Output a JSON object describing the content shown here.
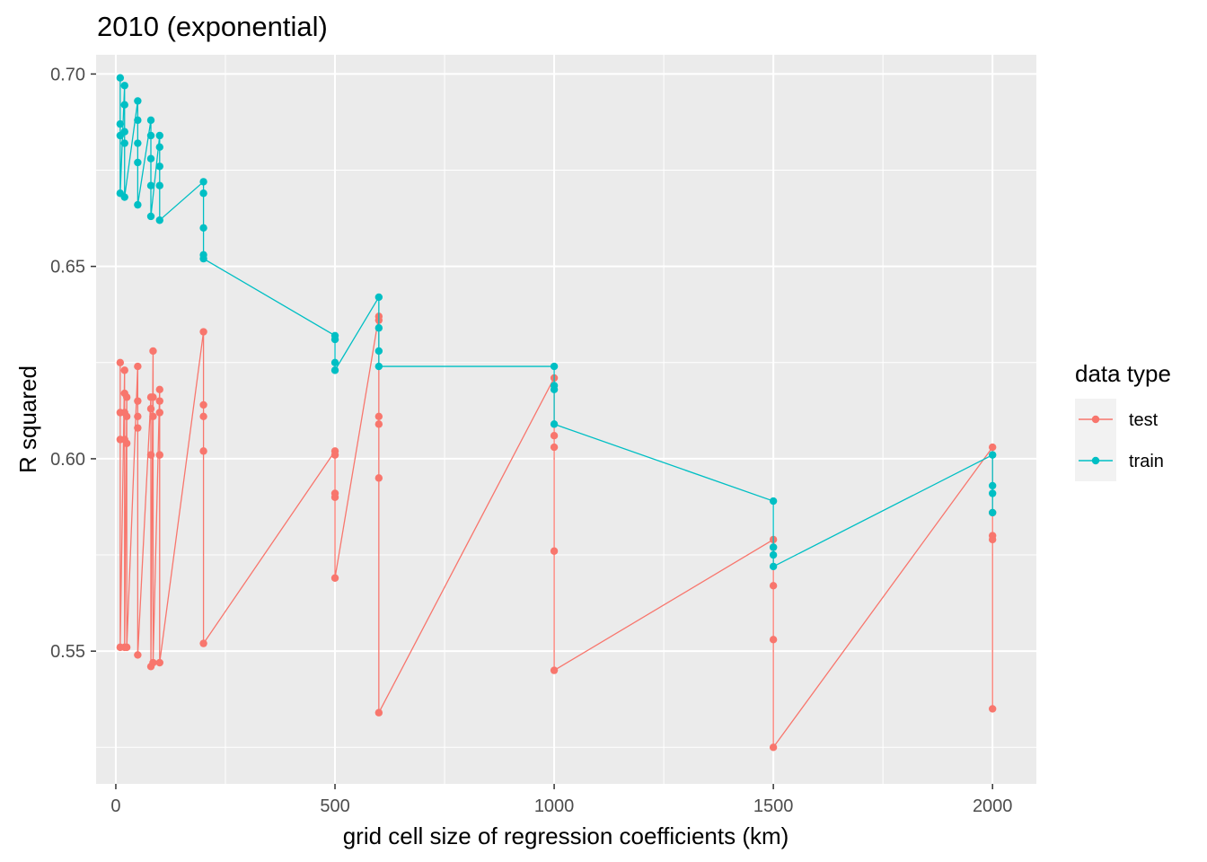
{
  "chart_data": {
    "type": "line",
    "title": "2010 (exponential)",
    "xlabel": "grid cell size of regression coefficients (km)",
    "ylabel": "R squared",
    "xlim": [
      -45,
      2100
    ],
    "ylim": [
      0.5155,
      0.705
    ],
    "x_ticks": [
      0,
      500,
      1000,
      1500,
      2000
    ],
    "x_tick_labels": [
      "0",
      "500",
      "1000",
      "1500",
      "2000"
    ],
    "y_ticks": [
      0.55,
      0.6,
      0.65,
      0.7
    ],
    "y_tick_labels": [
      "0.55",
      "0.60",
      "0.65",
      "0.70"
    ],
    "grid": true,
    "panel_background": "#EBEBEB",
    "legend": {
      "title": "data type",
      "position": "right",
      "entries": [
        {
          "label": "test",
          "color": "#F8766D"
        },
        {
          "label": "train",
          "color": "#00BFC4"
        }
      ]
    },
    "series": [
      {
        "name": "test",
        "color": "#F8766D",
        "points": [
          [
            10,
            0.625
          ],
          [
            10,
            0.612
          ],
          [
            10,
            0.605
          ],
          [
            10,
            0.551
          ],
          [
            20,
            0.623
          ],
          [
            20,
            0.617
          ],
          [
            20,
            0.612
          ],
          [
            20,
            0.605
          ],
          [
            20,
            0.551
          ],
          [
            25,
            0.616
          ],
          [
            25,
            0.611
          ],
          [
            25,
            0.604
          ],
          [
            25,
            0.551
          ],
          [
            50,
            0.624
          ],
          [
            50,
            0.615
          ],
          [
            50,
            0.611
          ],
          [
            50,
            0.608
          ],
          [
            50,
            0.549
          ],
          [
            80,
            0.616
          ],
          [
            80,
            0.613
          ],
          [
            80,
            0.601
          ],
          [
            80,
            0.546
          ],
          [
            85,
            0.628
          ],
          [
            85,
            0.616
          ],
          [
            85,
            0.611
          ],
          [
            85,
            0.547
          ],
          [
            100,
            0.618
          ],
          [
            100,
            0.615
          ],
          [
            100,
            0.612
          ],
          [
            100,
            0.601
          ],
          [
            100,
            0.547
          ],
          [
            200,
            0.633
          ],
          [
            200,
            0.614
          ],
          [
            200,
            0.611
          ],
          [
            200,
            0.602
          ],
          [
            200,
            0.552
          ],
          [
            500,
            0.602
          ],
          [
            500,
            0.601
          ],
          [
            500,
            0.591
          ],
          [
            500,
            0.59
          ],
          [
            500,
            0.569
          ],
          [
            600,
            0.637
          ],
          [
            600,
            0.636
          ],
          [
            600,
            0.611
          ],
          [
            600,
            0.609
          ],
          [
            600,
            0.595
          ],
          [
            600,
            0.534
          ],
          [
            1000,
            0.621
          ],
          [
            1000,
            0.606
          ],
          [
            1000,
            0.603
          ],
          [
            1000,
            0.576
          ],
          [
            1000,
            0.545
          ],
          [
            1500,
            0.579
          ],
          [
            1500,
            0.577
          ],
          [
            1500,
            0.567
          ],
          [
            1500,
            0.553
          ],
          [
            1500,
            0.525
          ],
          [
            2000,
            0.603
          ],
          [
            2000,
            0.586
          ],
          [
            2000,
            0.58
          ],
          [
            2000,
            0.579
          ],
          [
            2000,
            0.535
          ]
        ]
      },
      {
        "name": "train",
        "color": "#00BFC4",
        "points": [
          [
            10,
            0.699
          ],
          [
            10,
            0.687
          ],
          [
            10,
            0.684
          ],
          [
            10,
            0.669
          ],
          [
            20,
            0.697
          ],
          [
            20,
            0.692
          ],
          [
            20,
            0.685
          ],
          [
            20,
            0.682
          ],
          [
            20,
            0.668
          ],
          [
            50,
            0.693
          ],
          [
            50,
            0.688
          ],
          [
            50,
            0.682
          ],
          [
            50,
            0.677
          ],
          [
            50,
            0.666
          ],
          [
            80,
            0.688
          ],
          [
            80,
            0.684
          ],
          [
            80,
            0.678
          ],
          [
            80,
            0.671
          ],
          [
            80,
            0.663
          ],
          [
            100,
            0.684
          ],
          [
            100,
            0.681
          ],
          [
            100,
            0.676
          ],
          [
            100,
            0.671
          ],
          [
            100,
            0.662
          ],
          [
            200,
            0.672
          ],
          [
            200,
            0.669
          ],
          [
            200,
            0.66
          ],
          [
            200,
            0.653
          ],
          [
            200,
            0.652
          ],
          [
            500,
            0.632
          ],
          [
            500,
            0.631
          ],
          [
            500,
            0.625
          ],
          [
            500,
            0.623
          ],
          [
            600,
            0.642
          ],
          [
            600,
            0.634
          ],
          [
            600,
            0.628
          ],
          [
            600,
            0.624
          ],
          [
            1000,
            0.624
          ],
          [
            1000,
            0.619
          ],
          [
            1000,
            0.618
          ],
          [
            1000,
            0.609
          ],
          [
            1500,
            0.589
          ],
          [
            1500,
            0.577
          ],
          [
            1500,
            0.575
          ],
          [
            1500,
            0.572
          ],
          [
            2000,
            0.601
          ],
          [
            2000,
            0.593
          ],
          [
            2000,
            0.591
          ],
          [
            2000,
            0.586
          ]
        ]
      }
    ]
  }
}
